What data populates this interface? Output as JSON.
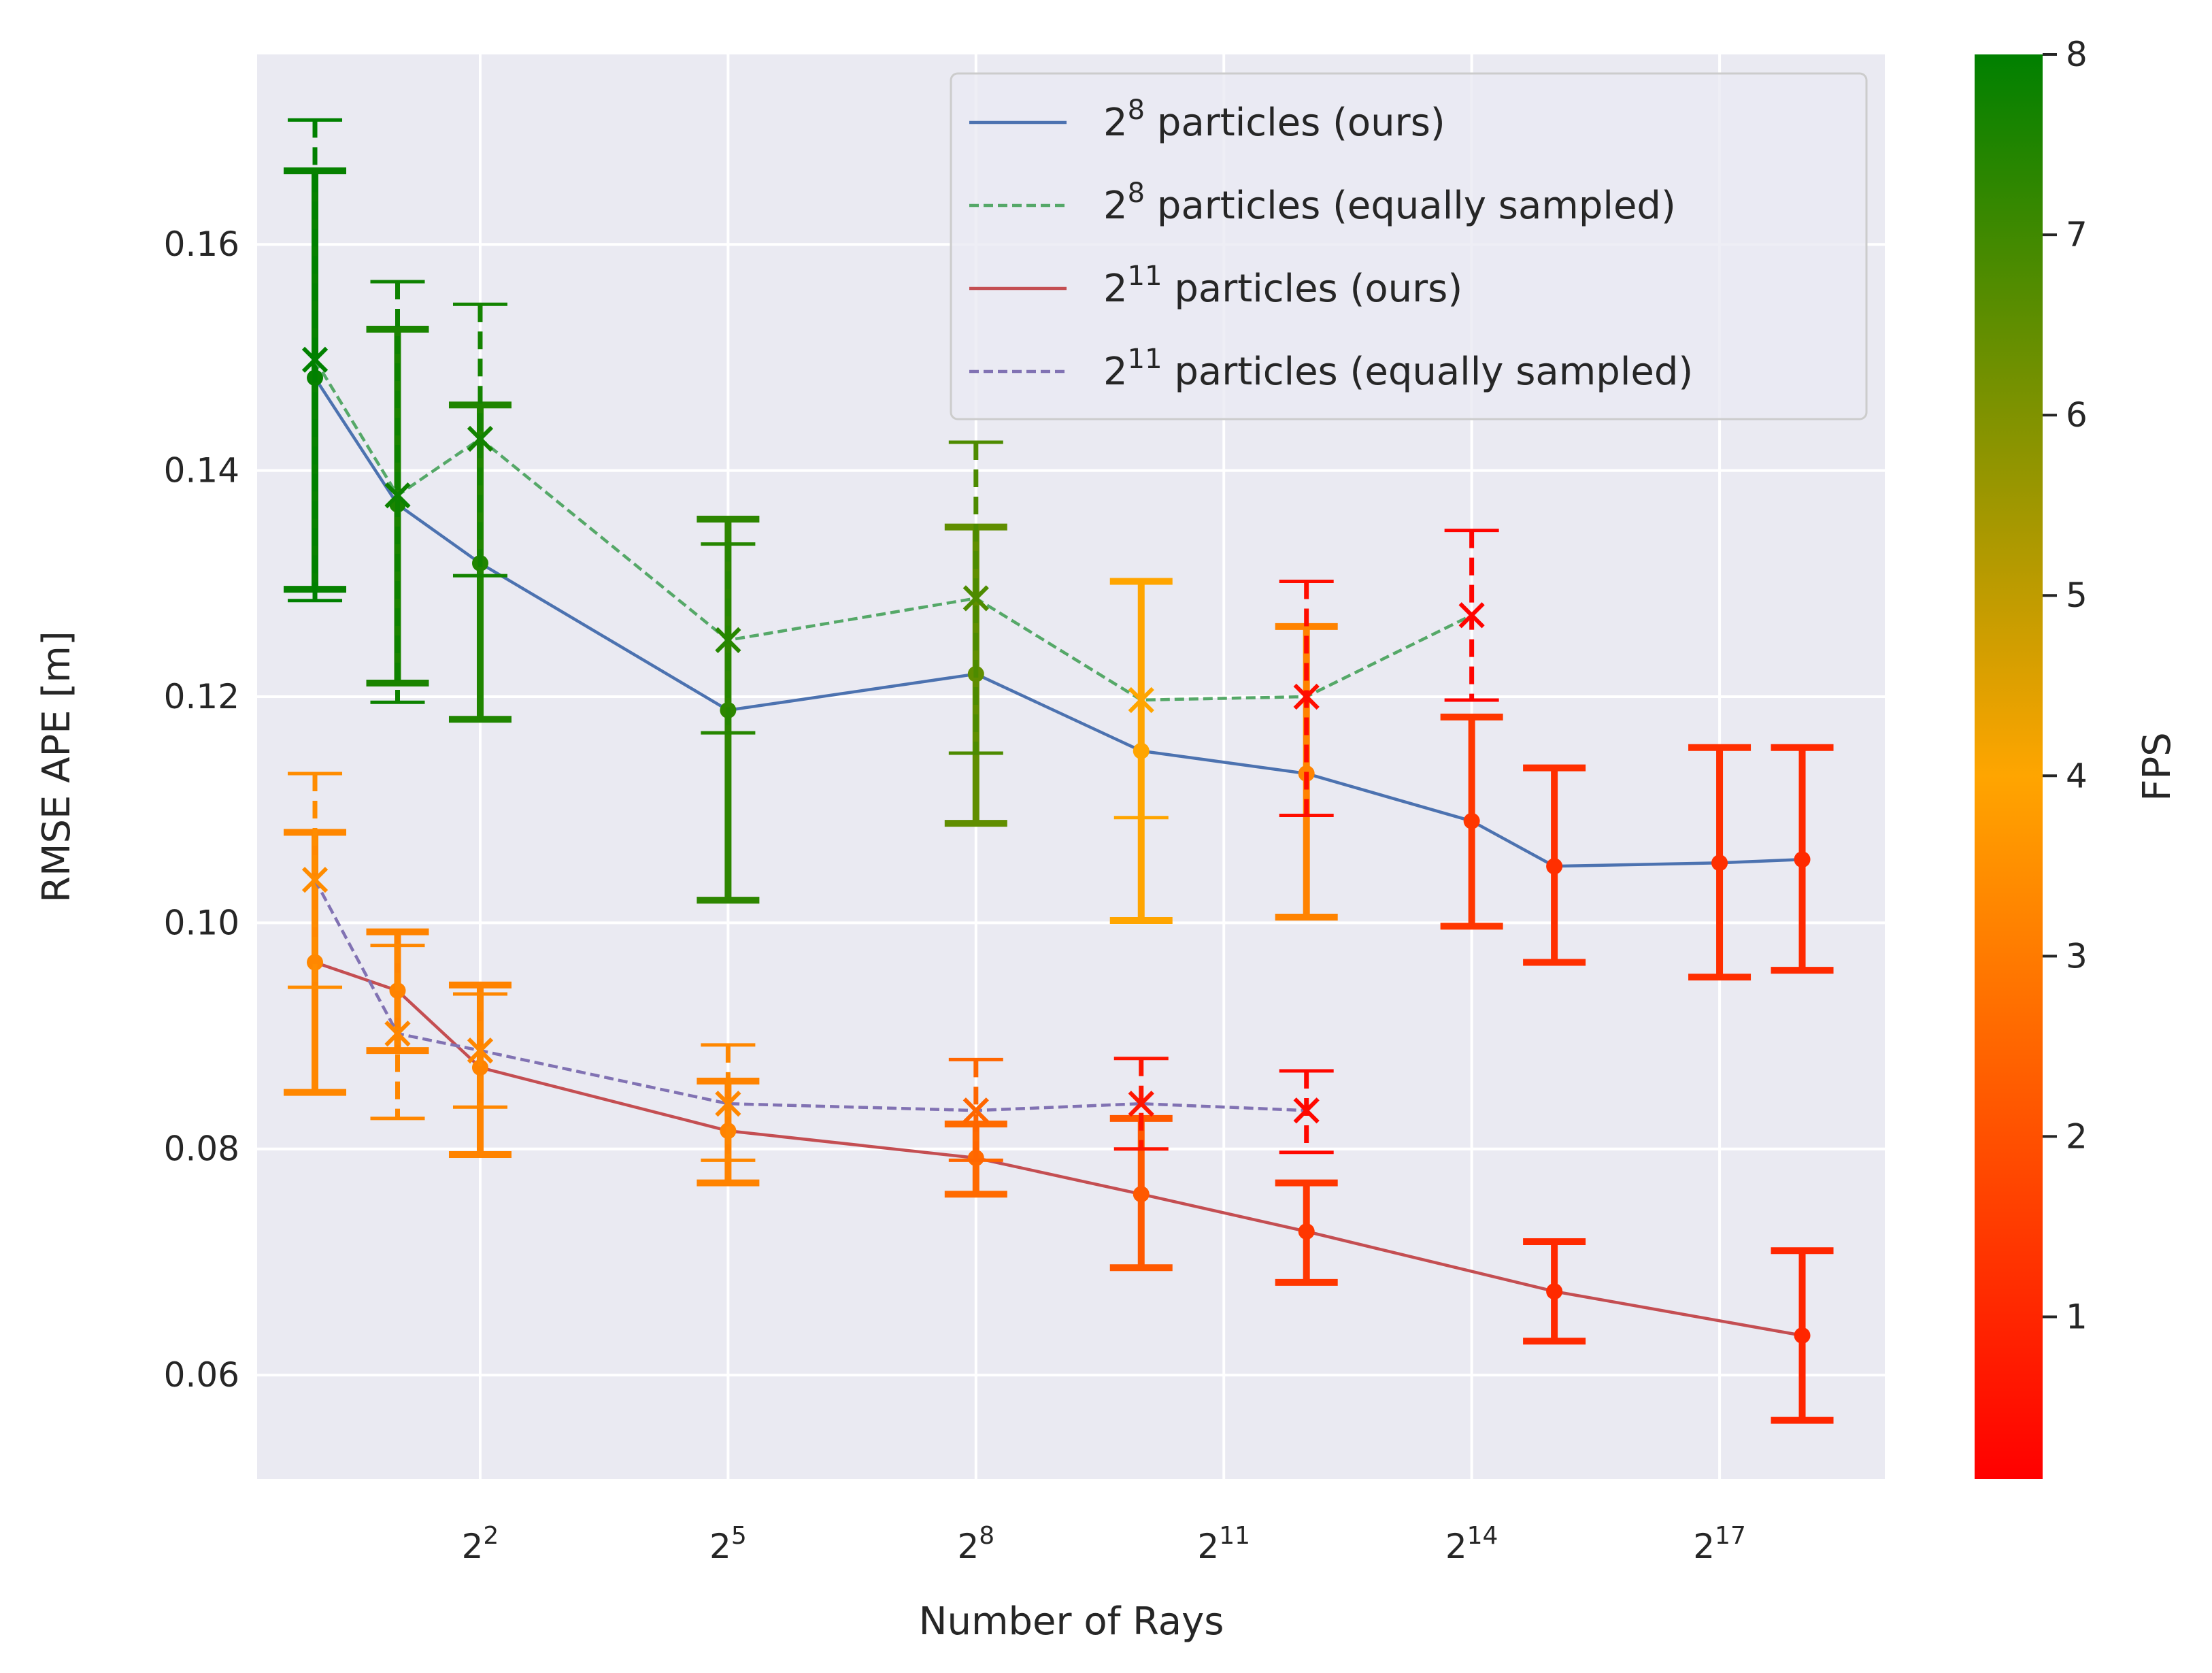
{
  "chart_data": {
    "type": "line",
    "xlabel": "Number of Rays",
    "ylabel": "RMSE APE [m]",
    "x_scale": "log2",
    "xlim_log2": [
      -0.7,
      19
    ],
    "ylim": [
      0.0508,
      0.1768
    ],
    "grid": true,
    "legend_position": "top-right",
    "x_ticks": [
      {
        "exp": 2,
        "base": "2",
        "sup": "2"
      },
      {
        "exp": 5,
        "base": "2",
        "sup": "5"
      },
      {
        "exp": 8,
        "base": "2",
        "sup": "8"
      },
      {
        "exp": 11,
        "base": "2",
        "sup": "11"
      },
      {
        "exp": 14,
        "base": "2",
        "sup": "14"
      },
      {
        "exp": 17,
        "base": "2",
        "sup": "17"
      }
    ],
    "y_ticks": [
      "0.06",
      "0.08",
      "0.10",
      "0.12",
      "0.14",
      "0.16"
    ],
    "colorbar": {
      "label": "FPS",
      "min": 0.1,
      "max": 8,
      "ticks": [
        "1",
        "2",
        "3",
        "4",
        "5",
        "6",
        "7",
        "8"
      ],
      "color_stops": [
        {
          "fps": 0.1,
          "color": "#ff0000"
        },
        {
          "fps": 4,
          "color": "#ffa500"
        },
        {
          "fps": 8,
          "color": "#008000"
        }
      ]
    },
    "series": [
      {
        "name_base": "2",
        "name_sup": "8",
        "name_rest": "  particles (ours)",
        "line_color": "#4c72b0",
        "dash": "solid",
        "marker": "dot",
        "points": [
          {
            "x": 0,
            "y": 0.1482,
            "lo": 0.1295,
            "hi": 0.1665,
            "fps": 7.9
          },
          {
            "x": 1,
            "y": 0.137,
            "lo": 0.1212,
            "hi": 0.1525,
            "fps": 7.6
          },
          {
            "x": 2,
            "y": 0.1318,
            "lo": 0.118,
            "hi": 0.1458,
            "fps": 7.5
          },
          {
            "x": 5,
            "y": 0.1188,
            "lo": 0.102,
            "hi": 0.1357,
            "fps": 7.3
          },
          {
            "x": 8,
            "y": 0.122,
            "lo": 0.1088,
            "hi": 0.135,
            "fps": 6.5
          },
          {
            "x": 10,
            "y": 0.1152,
            "lo": 0.1002,
            "hi": 0.1302,
            "fps": 4.0
          },
          {
            "x": 12,
            "y": 0.1132,
            "lo": 0.1005,
            "hi": 0.1262,
            "fps": 3.2
          },
          {
            "x": 14,
            "y": 0.109,
            "lo": 0.0997,
            "hi": 0.1182,
            "fps": 1.4
          },
          {
            "x": 15,
            "y": 0.105,
            "lo": 0.0965,
            "hi": 0.1137,
            "fps": 1.2
          },
          {
            "x": 17,
            "y": 0.1053,
            "lo": 0.0952,
            "hi": 0.1155,
            "fps": 1.2
          },
          {
            "x": 18,
            "y": 0.1056,
            "lo": 0.0958,
            "hi": 0.1155,
            "fps": 1.1
          }
        ]
      },
      {
        "name_base": "2",
        "name_sup": "8",
        "name_rest": "  particles (equally sampled)",
        "line_color": "#55a868",
        "dash": "dashed",
        "marker": "x",
        "points": [
          {
            "x": 0,
            "y": 0.1498,
            "lo": 0.1285,
            "hi": 0.171,
            "fps": 8.0
          },
          {
            "x": 1,
            "y": 0.1378,
            "lo": 0.1195,
            "hi": 0.1567,
            "fps": 7.8
          },
          {
            "x": 2,
            "y": 0.1428,
            "lo": 0.1307,
            "hi": 0.1547,
            "fps": 7.7
          },
          {
            "x": 5,
            "y": 0.125,
            "lo": 0.1168,
            "hi": 0.1335,
            "fps": 7.4
          },
          {
            "x": 8,
            "y": 0.1287,
            "lo": 0.115,
            "hi": 0.1425,
            "fps": 6.8
          },
          {
            "x": 10,
            "y": 0.1197,
            "lo": 0.1093,
            "hi": 0.1302,
            "fps": 4.0
          },
          {
            "x": 12,
            "y": 0.12,
            "lo": 0.1095,
            "hi": 0.1302,
            "fps": 0.4
          },
          {
            "x": 14,
            "y": 0.1272,
            "lo": 0.1197,
            "hi": 0.1347,
            "fps": 0.2
          }
        ]
      },
      {
        "name_base": "2",
        "name_sup": "11",
        "name_rest": "  particles (ours)",
        "line_color": "#c44e52",
        "dash": "solid",
        "marker": "dot",
        "points": [
          {
            "x": 0,
            "y": 0.0965,
            "lo": 0.085,
            "hi": 0.108,
            "fps": 3.3
          },
          {
            "x": 1,
            "y": 0.094,
            "lo": 0.0887,
            "hi": 0.0992,
            "fps": 3.2
          },
          {
            "x": 2,
            "y": 0.0872,
            "lo": 0.0795,
            "hi": 0.0945,
            "fps": 3.2
          },
          {
            "x": 5,
            "y": 0.0816,
            "lo": 0.077,
            "hi": 0.086,
            "fps": 3.2
          },
          {
            "x": 8,
            "y": 0.0792,
            "lo": 0.076,
            "hi": 0.0822,
            "fps": 2.6
          },
          {
            "x": 10,
            "y": 0.076,
            "lo": 0.0695,
            "hi": 0.0827,
            "fps": 2.2
          },
          {
            "x": 12,
            "y": 0.0727,
            "lo": 0.0682,
            "hi": 0.077,
            "fps": 1.4
          },
          {
            "x": 15,
            "y": 0.0674,
            "lo": 0.063,
            "hi": 0.0718,
            "fps": 1.1
          },
          {
            "x": 18,
            "y": 0.0635,
            "lo": 0.056,
            "hi": 0.071,
            "fps": 1.0
          }
        ]
      },
      {
        "name_base": "2",
        "name_sup": "11",
        "name_rest": "  particles (equally sampled)",
        "line_color": "#8172b3",
        "dash": "dashed",
        "marker": "x",
        "points": [
          {
            "x": 0,
            "y": 0.1038,
            "lo": 0.0943,
            "hi": 0.1132,
            "fps": 3.4
          },
          {
            "x": 1,
            "y": 0.0902,
            "lo": 0.0827,
            "hi": 0.098,
            "fps": 3.3
          },
          {
            "x": 2,
            "y": 0.0887,
            "lo": 0.0837,
            "hi": 0.0937,
            "fps": 3.3
          },
          {
            "x": 5,
            "y": 0.084,
            "lo": 0.079,
            "hi": 0.0892,
            "fps": 3.3
          },
          {
            "x": 8,
            "y": 0.0834,
            "lo": 0.079,
            "hi": 0.0879,
            "fps": 2.5
          },
          {
            "x": 10,
            "y": 0.084,
            "lo": 0.08,
            "hi": 0.088,
            "fps": 0.6
          },
          {
            "x": 12,
            "y": 0.0834,
            "lo": 0.0797,
            "hi": 0.0869,
            "fps": 0.3
          }
        ]
      }
    ]
  }
}
